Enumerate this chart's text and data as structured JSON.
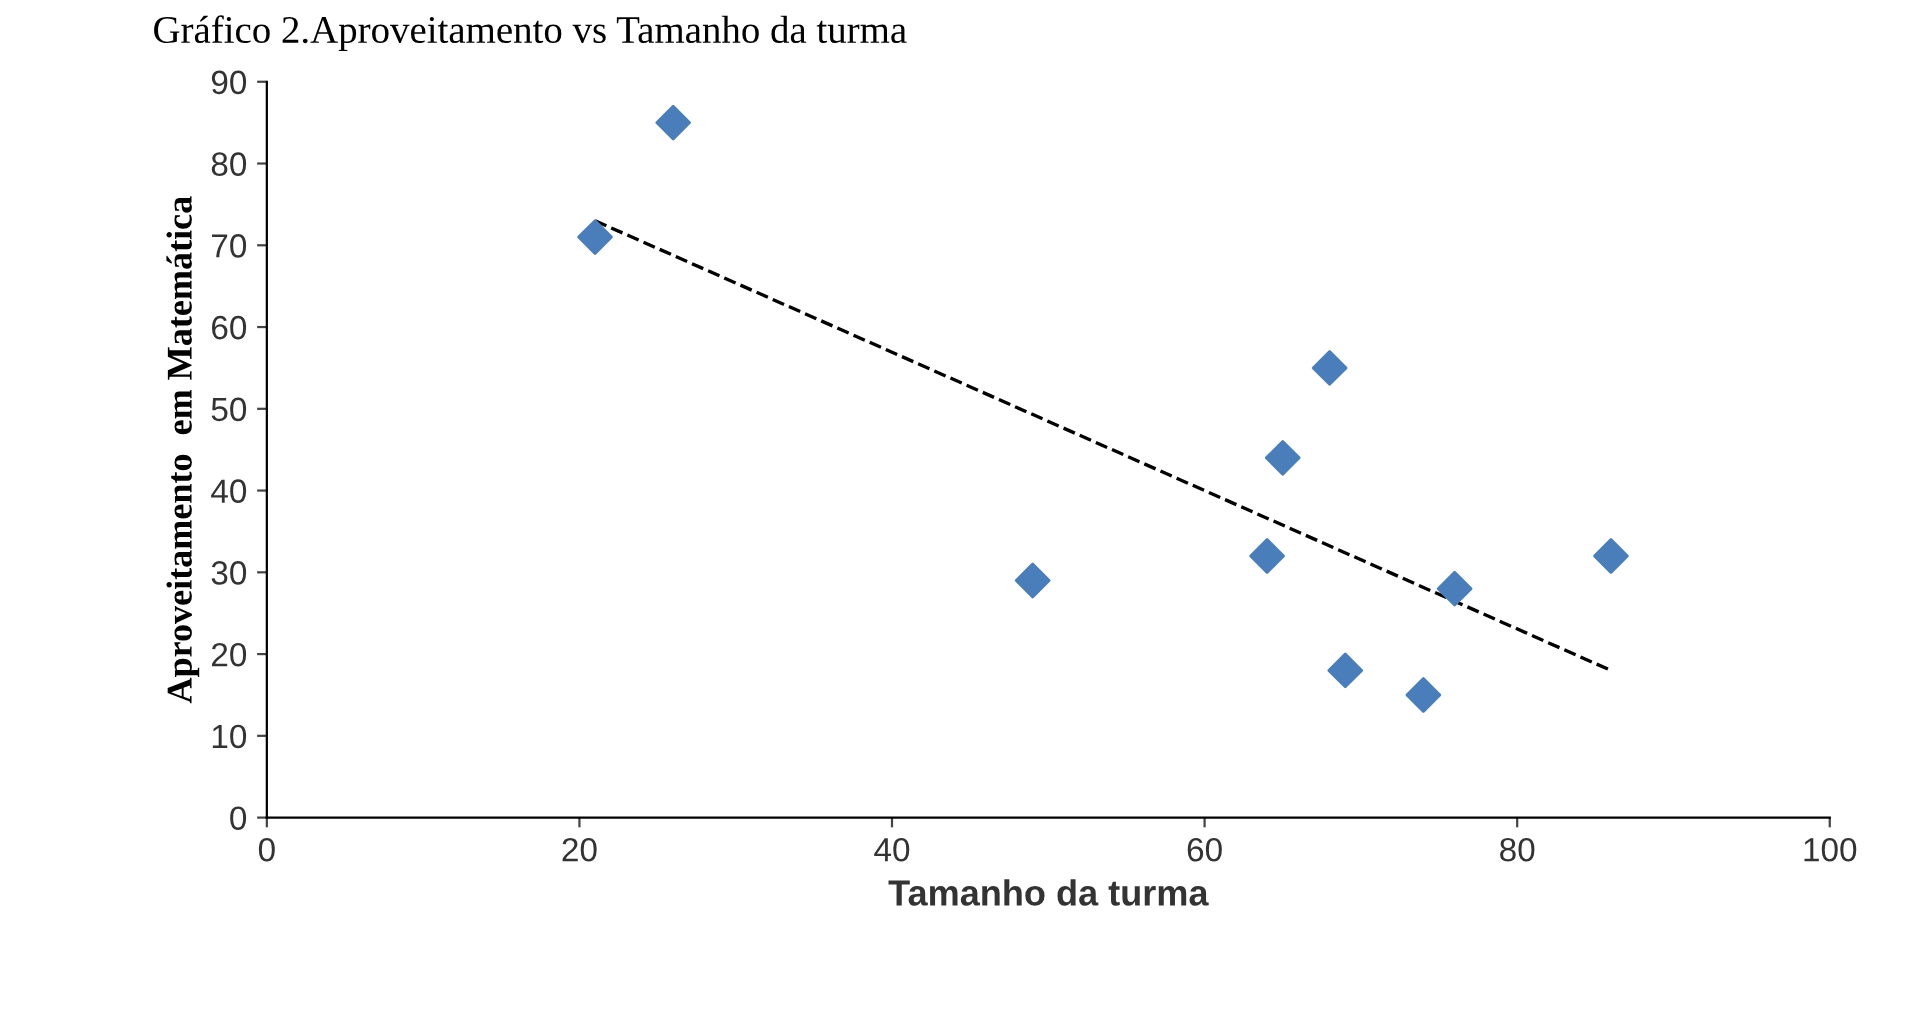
{
  "chart_data": {
    "type": "scatter",
    "title": "Gráfico 2.Aproveitamento vs Tamanho da turma",
    "xlabel": "Tamanho da turma",
    "ylabel": "Aproveitamento  em Matemática",
    "xlim": [
      0,
      100
    ],
    "xticks": [
      0,
      20,
      40,
      60,
      80,
      100
    ],
    "ylim": [
      0,
      90
    ],
    "yticks": [
      0,
      10,
      20,
      30,
      40,
      50,
      60,
      70,
      80,
      90
    ],
    "grid": false,
    "legend": false,
    "series": [
      {
        "marker": "diamond",
        "color": "#4a7ebb",
        "x": [
          21,
          26,
          49,
          64,
          65,
          68,
          69,
          74,
          76,
          86
        ],
        "values": [
          71,
          85,
          29,
          32,
          44,
          55,
          18,
          15,
          28,
          32
        ]
      },
      {
        "type": "line",
        "marker": "none",
        "color": "#000000",
        "line_style": "dashed",
        "x": [
          21,
          86
        ],
        "values": [
          73,
          18
        ]
      }
    ]
  }
}
